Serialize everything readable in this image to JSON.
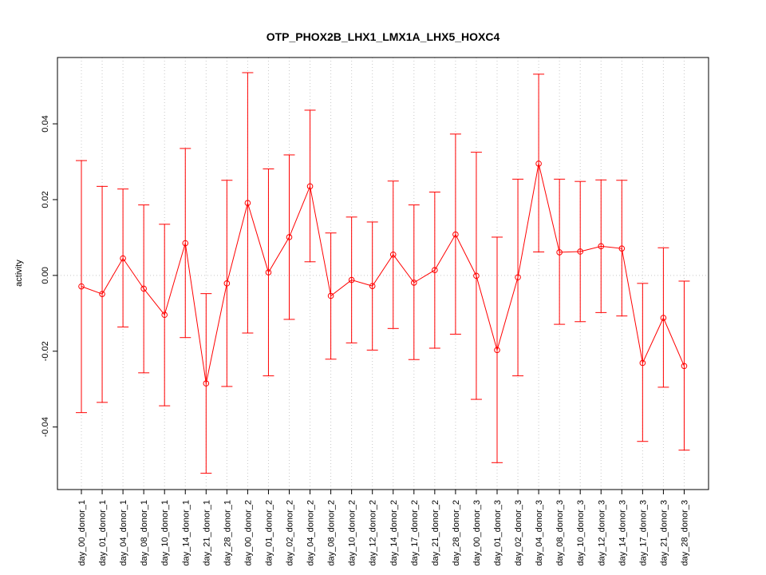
{
  "chart_data": {
    "type": "line",
    "title": "OTP_PHOX2B_LHX1_LMX1A_LHX5_HOXC4",
    "xlabel": "",
    "ylabel": "activity",
    "ylim": [
      -0.0565,
      0.0575
    ],
    "yticks": [
      -0.04,
      -0.02,
      0.0,
      0.02,
      0.04
    ],
    "ytick_labels": [
      "-0.04",
      "-0.02",
      "0.00",
      "0.02",
      "0.04"
    ],
    "grid": true,
    "categories": [
      "day_00_donor_1",
      "day_01_donor_1",
      "day_04_donor_1",
      "day_08_donor_1",
      "day_10_donor_1",
      "day_14_donor_1",
      "day_21_donor_1",
      "day_28_donor_1",
      "day_00_donor_2",
      "day_01_donor_2",
      "day_02_donor_2",
      "day_04_donor_2",
      "day_08_donor_2",
      "day_10_donor_2",
      "day_12_donor_2",
      "day_14_donor_2",
      "day_17_donor_2",
      "day_21_donor_2",
      "day_28_donor_2",
      "day_00_donor_3",
      "day_01_donor_3",
      "day_02_donor_3",
      "day_04_donor_3",
      "day_08_donor_3",
      "day_10_donor_3",
      "day_12_donor_3",
      "day_14_donor_3",
      "day_17_donor_3",
      "day_21_donor_3",
      "day_28_donor_3"
    ],
    "series": [
      {
        "color": "#ff0000",
        "values": [
          -0.0029,
          -0.0049,
          0.0045,
          -0.0035,
          -0.0104,
          0.0085,
          -0.0285,
          -0.0021,
          0.0191,
          0.0008,
          0.0101,
          0.0235,
          -0.0054,
          -0.0012,
          -0.0028,
          0.0055,
          -0.0019,
          0.0014,
          0.0108,
          -0.0001,
          -0.0197,
          -0.0005,
          0.0295,
          0.0061,
          0.0063,
          0.0077,
          0.0071,
          -0.0231,
          -0.0112,
          -0.0239
        ],
        "upper": [
          0.0303,
          0.0235,
          0.0228,
          0.0186,
          0.0135,
          0.0335,
          -0.0048,
          0.0251,
          0.0535,
          0.0281,
          0.0318,
          0.0436,
          0.0112,
          0.0154,
          0.0141,
          0.0249,
          0.0186,
          0.022,
          0.0373,
          0.0325,
          0.0101,
          0.0254,
          0.0531,
          0.0254,
          0.0248,
          0.0252,
          0.0251,
          -0.0021,
          0.0073,
          -0.0015
        ],
        "lower": [
          -0.0362,
          -0.0335,
          -0.0136,
          -0.0257,
          -0.0344,
          -0.0164,
          -0.0522,
          -0.0293,
          -0.0152,
          -0.0265,
          -0.0116,
          0.0036,
          -0.0221,
          -0.0178,
          -0.0197,
          -0.014,
          -0.0222,
          -0.0192,
          -0.0155,
          -0.0327,
          -0.0494,
          -0.0265,
          0.0062,
          -0.0129,
          -0.0122,
          -0.0098,
          -0.0107,
          -0.0438,
          -0.0295,
          -0.0461
        ]
      }
    ]
  }
}
